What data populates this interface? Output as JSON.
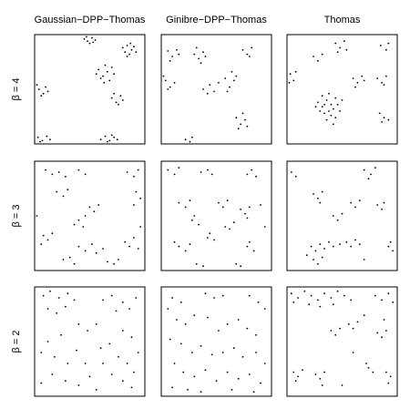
{
  "column_titles": [
    "Gaussian−DPP−Thomas",
    "Ginibre−DPP−Thomas",
    "Thomas"
  ],
  "row_labels": [
    "β = 4",
    "β = 3",
    "β = 2"
  ],
  "chart_data": [
    {
      "type": "scatter",
      "color": "#000000",
      "xlim": [
        0,
        100
      ],
      "ylim": [
        0,
        100
      ],
      "x": [
        45,
        48,
        52,
        55,
        50,
        47,
        53,
        80,
        84,
        88,
        86,
        90,
        82,
        87,
        92,
        84,
        58,
        62,
        66,
        60,
        70,
        64,
        68,
        56,
        72,
        63,
        70,
        74,
        78,
        76,
        80,
        72,
        4,
        8,
        10,
        6,
        12,
        2,
        3,
        7,
        11,
        5,
        14,
        60,
        64,
        68,
        72,
        66,
        75,
        70
      ],
      "y": [
        96,
        94,
        97,
        95,
        92,
        98,
        93,
        88,
        90,
        86,
        82,
        89,
        84,
        92,
        84,
        80,
        68,
        62,
        66,
        60,
        70,
        72,
        58,
        64,
        64,
        56,
        42,
        38,
        44,
        36,
        40,
        46,
        50,
        46,
        52,
        44,
        48,
        54,
        6,
        3,
        7,
        2,
        4,
        4,
        7,
        3,
        6,
        2,
        4,
        8
      ]
    },
    {
      "type": "scatter",
      "color": "#000000",
      "xlim": [
        0,
        100
      ],
      "ylim": [
        0,
        100
      ],
      "x": [
        6,
        10,
        14,
        8,
        16,
        30,
        34,
        38,
        36,
        40,
        32,
        74,
        78,
        82,
        80,
        4,
        8,
        12,
        6,
        2,
        38,
        44,
        48,
        52,
        42,
        58,
        62,
        66,
        60,
        68,
        64,
        68,
        72,
        76,
        70,
        74,
        78,
        22,
        26,
        28
      ],
      "y": [
        85,
        80,
        86,
        76,
        82,
        82,
        78,
        84,
        74,
        80,
        88,
        86,
        82,
        88,
        80,
        58,
        52,
        56,
        50,
        62,
        50,
        54,
        48,
        56,
        46,
        60,
        52,
        58,
        48,
        62,
        66,
        24,
        18,
        22,
        14,
        28,
        16,
        4,
        2,
        6
      ]
    },
    {
      "type": "scatter",
      "color": "#000000",
      "xlim": [
        0,
        100
      ],
      "ylim": [
        0,
        100
      ],
      "x": [
        44,
        48,
        52,
        46,
        54,
        85,
        90,
        92,
        3,
        6,
        8,
        2,
        28,
        32,
        36,
        40,
        44,
        30,
        34,
        38,
        42,
        46,
        48,
        36,
        40,
        32,
        44,
        26,
        50,
        38,
        42,
        34,
        60,
        64,
        68,
        62,
        70,
        82,
        86,
        90,
        88,
        84,
        88,
        92,
        86,
        24,
        28,
        32
      ],
      "y": [
        92,
        88,
        94,
        84,
        86,
        90,
        86,
        92,
        64,
        58,
        66,
        56,
        38,
        34,
        40,
        36,
        42,
        30,
        28,
        30,
        32,
        36,
        30,
        22,
        26,
        44,
        24,
        34,
        40,
        46,
        18,
        36,
        60,
        56,
        62,
        52,
        58,
        60,
        56,
        62,
        54,
        28,
        24,
        22,
        20,
        80,
        76,
        82
      ]
    },
    {
      "type": "scatter",
      "color": "#000000",
      "xlim": [
        0,
        100
      ],
      "ylim": [
        0,
        100
      ],
      "x": [
        10,
        16,
        22,
        28,
        40,
        46,
        84,
        90,
        94,
        20,
        26,
        30,
        50,
        54,
        58,
        46,
        40,
        36,
        44,
        92,
        96,
        90,
        8,
        12,
        16,
        6,
        40,
        46,
        52,
        56,
        62,
        82,
        86,
        90,
        26,
        32,
        36,
        66,
        72,
        76,
        2,
        96,
        94
      ],
      "y": [
        92,
        88,
        90,
        86,
        92,
        88,
        90,
        86,
        92,
        72,
        68,
        74,
        58,
        54,
        60,
        50,
        46,
        42,
        40,
        72,
        66,
        60,
        32,
        28,
        34,
        24,
        22,
        18,
        24,
        16,
        20,
        26,
        22,
        30,
        10,
        12,
        6,
        8,
        6,
        10,
        50,
        40,
        20
      ]
    },
    {
      "type": "scatter",
      "color": "#000000",
      "xlim": [
        0,
        100
      ],
      "ylim": [
        0,
        100
      ],
      "x": [
        6,
        12,
        16,
        36,
        42,
        46,
        78,
        82,
        86,
        16,
        22,
        26,
        28,
        34,
        30,
        52,
        56,
        60,
        72,
        76,
        80,
        78,
        16,
        22,
        26,
        12,
        42,
        48,
        44,
        58,
        62,
        66,
        78,
        84,
        80,
        32,
        38,
        68,
        72,
        90,
        94
      ],
      "y": [
        92,
        88,
        94,
        90,
        92,
        88,
        88,
        92,
        86,
        62,
        58,
        64,
        46,
        42,
        50,
        62,
        58,
        64,
        56,
        52,
        58,
        48,
        22,
        18,
        24,
        26,
        30,
        28,
        34,
        40,
        38,
        44,
        22,
        18,
        26,
        6,
        4,
        6,
        4,
        60,
        40
      ]
    },
    {
      "type": "scatter",
      "color": "#000000",
      "xlim": [
        0,
        100
      ],
      "ylim": [
        0,
        100
      ],
      "x": [
        70,
        76,
        80,
        74,
        24,
        28,
        32,
        30,
        58,
        62,
        66,
        82,
        86,
        88,
        42,
        46,
        50,
        22,
        26,
        30,
        18,
        34,
        38,
        42,
        48,
        54,
        58,
        62,
        66,
        24,
        28,
        32,
        92,
        96,
        94,
        4,
        8,
        70
      ],
      "y": [
        92,
        88,
        94,
        84,
        70,
        66,
        72,
        62,
        62,
        58,
        64,
        60,
        56,
        62,
        50,
        46,
        52,
        22,
        18,
        24,
        14,
        20,
        26,
        22,
        24,
        26,
        22,
        28,
        24,
        10,
        6,
        12,
        22,
        18,
        26,
        90,
        86,
        10
      ]
    },
    {
      "type": "scatter",
      "color": "#000000",
      "xlim": [
        0,
        100
      ],
      "ylim": [
        0,
        100
      ],
      "x": [
        8,
        14,
        22,
        30,
        36,
        12,
        20,
        28,
        62,
        70,
        80,
        92,
        86,
        74,
        40,
        48,
        56,
        24,
        12,
        6,
        18,
        38,
        30,
        60,
        68,
        80,
        88,
        94,
        76,
        84,
        90,
        80,
        88,
        70,
        50,
        40,
        28,
        16,
        6,
        56,
        46,
        62
      ],
      "y": [
        92,
        96,
        90,
        94,
        88,
        80,
        76,
        82,
        88,
        92,
        86,
        90,
        80,
        78,
        66,
        60,
        66,
        56,
        50,
        40,
        36,
        42,
        30,
        44,
        48,
        60,
        54,
        40,
        36,
        30,
        22,
        14,
        8,
        20,
        18,
        10,
        14,
        20,
        12,
        6,
        30,
        30
      ]
    },
    {
      "type": "scatter",
      "color": "#000000",
      "xlim": [
        0,
        100
      ],
      "ylim": [
        0,
        100
      ],
      "x": [
        10,
        18,
        6,
        40,
        48,
        56,
        80,
        88,
        94,
        14,
        22,
        30,
        42,
        52,
        60,
        70,
        78,
        86,
        8,
        18,
        28,
        36,
        46,
        56,
        66,
        74,
        86,
        94,
        12,
        20,
        30,
        40,
        50,
        60,
        70,
        80,
        90,
        10,
        24,
        36,
        64,
        84
      ],
      "y": [
        90,
        86,
        80,
        94,
        90,
        92,
        92,
        86,
        80,
        70,
        66,
        74,
        72,
        60,
        66,
        70,
        62,
        56,
        52,
        48,
        40,
        46,
        38,
        40,
        44,
        36,
        40,
        30,
        30,
        22,
        18,
        24,
        14,
        22,
        16,
        20,
        12,
        8,
        6,
        4,
        6,
        4
      ]
    },
    {
      "type": "scatter",
      "color": "#000000",
      "xlim": [
        0,
        100
      ],
      "ylim": [
        0,
        100
      ],
      "x": [
        4,
        10,
        16,
        22,
        28,
        34,
        40,
        46,
        52,
        58,
        20,
        30,
        42,
        6,
        80,
        86,
        92,
        96,
        40,
        44,
        48,
        56,
        60,
        64,
        82,
        86,
        90,
        88,
        70,
        6,
        10,
        14,
        8,
        26,
        30,
        34,
        32,
        74,
        78,
        72,
        90,
        94,
        92,
        50,
        60
      ],
      "y": [
        94,
        90,
        96,
        92,
        88,
        94,
        90,
        96,
        92,
        88,
        84,
        82,
        84,
        86,
        92,
        88,
        94,
        86,
        60,
        56,
        62,
        66,
        62,
        68,
        58,
        54,
        60,
        70,
        74,
        22,
        18,
        24,
        14,
        20,
        16,
        22,
        10,
        26,
        22,
        30,
        22,
        18,
        12,
        10,
        40
      ]
    }
  ]
}
